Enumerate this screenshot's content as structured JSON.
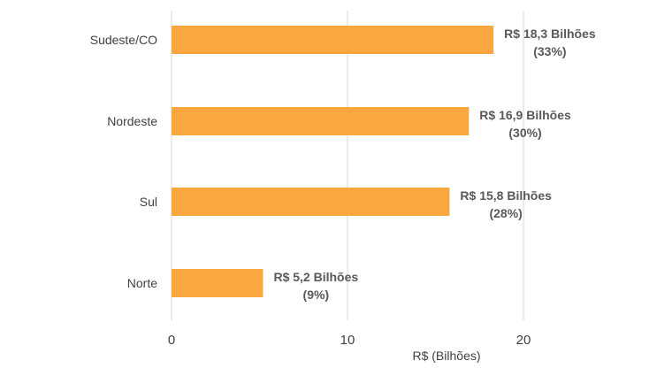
{
  "chart_data": {
    "type": "bar",
    "orientation": "horizontal",
    "categories": [
      "Sudeste/CO",
      "Nordeste",
      "Sul",
      "Norte"
    ],
    "values": [
      18.3,
      16.9,
      15.8,
      5.2
    ],
    "data_labels": [
      [
        "R$ 18,3 Bilhões",
        "(33%)"
      ],
      [
        "R$ 16,9 Bilhões",
        "(30%)"
      ],
      [
        "R$ 15,8 Bilhões",
        "(28%)"
      ],
      [
        "R$ 5,2 Bilhões",
        "(9%)"
      ]
    ],
    "xlabel": "R$ (Bilhões)",
    "xticks": [
      0,
      10,
      20
    ],
    "xtick_labels": [
      "0",
      "10",
      "20"
    ],
    "xlim": [
      0,
      20
    ],
    "grid": "vertical",
    "legend": "none",
    "bar_color": "#F9A73E",
    "grid_color": "#D9D9D9",
    "text_color": "#404040",
    "label_color": "#595959"
  }
}
